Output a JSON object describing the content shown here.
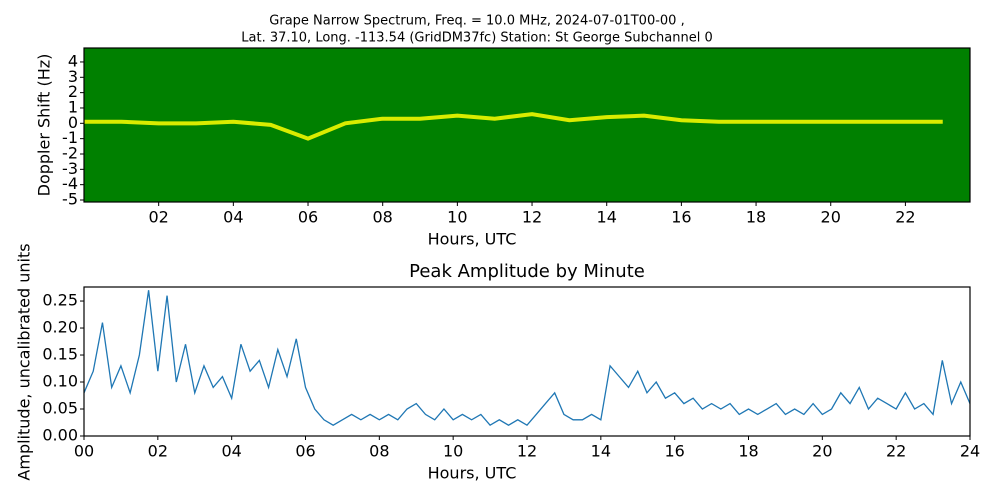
{
  "chart_data": [
    {
      "type": "spectrogram",
      "title": [
        "Grape Narrow Spectrum, Freq. = 10.0 MHz, 2024-07-01T00-00 ,",
        "Lat.  37.10, Long. -113.54 (GridDM37fc) Station: St George Subchannel 0"
      ],
      "x_label": "Hours, UTC",
      "y_label": "Doppler Shift (Hz)",
      "x": [
        0,
        1,
        2,
        3,
        4,
        5,
        6,
        7,
        8,
        9,
        10,
        11,
        12,
        13,
        14,
        15,
        16,
        17,
        18,
        19,
        20,
        21,
        22,
        23
      ],
      "values": [
        0.1,
        0.1,
        0,
        0,
        0.1,
        -0.1,
        -1,
        0,
        0.3,
        0.3,
        0.5,
        0.3,
        0.6,
        0.2,
        0.4,
        0.5,
        0.2,
        0.1,
        0.1,
        0.1,
        0.1,
        0.1,
        0.1,
        0.1
      ],
      "color": "#ffff00",
      "background": "#008000",
      "xlim": [
        0,
        23.73
      ],
      "ylim": [
        -5.13,
        4.91
      ],
      "xticks": [
        {
          "value": 2,
          "label": "02"
        },
        {
          "value": 4,
          "label": "04"
        },
        {
          "value": 6,
          "label": "06"
        },
        {
          "value": 8,
          "label": "08"
        },
        {
          "value": 10,
          "label": "10"
        },
        {
          "value": 12,
          "label": "12"
        },
        {
          "value": 14,
          "label": "14"
        },
        {
          "value": 16,
          "label": "16"
        },
        {
          "value": 18,
          "label": "18"
        },
        {
          "value": 20,
          "label": "20"
        },
        {
          "value": 22,
          "label": "22"
        }
      ],
      "yticks": [
        -5,
        -4,
        -3,
        -2,
        -1,
        0,
        1,
        2,
        3,
        4
      ]
    },
    {
      "type": "line",
      "title": [
        "Peak Amplitude by Minute"
      ],
      "x_label": "Hours, UTC",
      "y_label": "Amplitude, uncalibrated units",
      "x": [
        0,
        0.25,
        0.5,
        0.75,
        1,
        1.25,
        1.5,
        1.75,
        2,
        2.25,
        2.5,
        2.75,
        3,
        3.25,
        3.5,
        3.75,
        4,
        4.25,
        4.5,
        4.75,
        5,
        5.25,
        5.5,
        5.75,
        6,
        6.25,
        6.5,
        6.75,
        7,
        7.25,
        7.5,
        7.75,
        8,
        8.25,
        8.5,
        8.75,
        9,
        9.25,
        9.5,
        9.75,
        10,
        10.25,
        10.5,
        10.75,
        11,
        11.25,
        11.5,
        11.75,
        12,
        12.25,
        12.5,
        12.75,
        13,
        13.25,
        13.5,
        13.75,
        14,
        14.25,
        14.5,
        14.75,
        15,
        15.25,
        15.5,
        15.75,
        16,
        16.25,
        16.5,
        16.75,
        17,
        17.25,
        17.5,
        17.75,
        18,
        18.25,
        18.5,
        18.75,
        19,
        19.25,
        19.5,
        19.75,
        20,
        20.25,
        20.5,
        20.75,
        21,
        21.25,
        21.5,
        21.75,
        22,
        22.25,
        22.5,
        22.75,
        23,
        23.25,
        23.5,
        23.75,
        24
      ],
      "values": [
        0.08,
        0.12,
        0.21,
        0.09,
        0.13,
        0.08,
        0.15,
        0.27,
        0.12,
        0.26,
        0.1,
        0.17,
        0.08,
        0.13,
        0.09,
        0.11,
        0.07,
        0.17,
        0.12,
        0.14,
        0.09,
        0.16,
        0.11,
        0.18,
        0.09,
        0.05,
        0.03,
        0.02,
        0.03,
        0.04,
        0.03,
        0.04,
        0.03,
        0.04,
        0.03,
        0.05,
        0.06,
        0.04,
        0.03,
        0.05,
        0.03,
        0.04,
        0.03,
        0.04,
        0.02,
        0.03,
        0.02,
        0.03,
        0.02,
        0.04,
        0.06,
        0.08,
        0.04,
        0.03,
        0.03,
        0.04,
        0.03,
        0.13,
        0.11,
        0.09,
        0.12,
        0.08,
        0.1,
        0.07,
        0.08,
        0.06,
        0.07,
        0.05,
        0.06,
        0.05,
        0.06,
        0.04,
        0.05,
        0.04,
        0.05,
        0.06,
        0.04,
        0.05,
        0.04,
        0.06,
        0.04,
        0.05,
        0.08,
        0.06,
        0.09,
        0.05,
        0.07,
        0.06,
        0.05,
        0.08,
        0.05,
        0.06,
        0.04,
        0.14,
        0.06,
        0.1,
        0.06
      ],
      "color": "#1f77b4",
      "xlim": [
        0,
        24
      ],
      "ylim": [
        0,
        0.276
      ],
      "xticks": [
        {
          "value": 0,
          "label": "00"
        },
        {
          "value": 2,
          "label": "02"
        },
        {
          "value": 4,
          "label": "04"
        },
        {
          "value": 6,
          "label": "06"
        },
        {
          "value": 8,
          "label": "08"
        },
        {
          "value": 10,
          "label": "10"
        },
        {
          "value": 12,
          "label": "12"
        },
        {
          "value": 14,
          "label": "14"
        },
        {
          "value": 16,
          "label": "16"
        },
        {
          "value": 18,
          "label": "18"
        },
        {
          "value": 20,
          "label": "20"
        },
        {
          "value": 22,
          "label": "22"
        },
        {
          "value": 24,
          "label": "24"
        }
      ],
      "yticks": [
        {
          "value": 0,
          "label": "0.00"
        },
        0.05,
        {
          "value": 0.1,
          "label": "0.10"
        },
        0.15,
        {
          "value": 0.2,
          "label": "0.20"
        },
        0.25
      ]
    }
  ]
}
